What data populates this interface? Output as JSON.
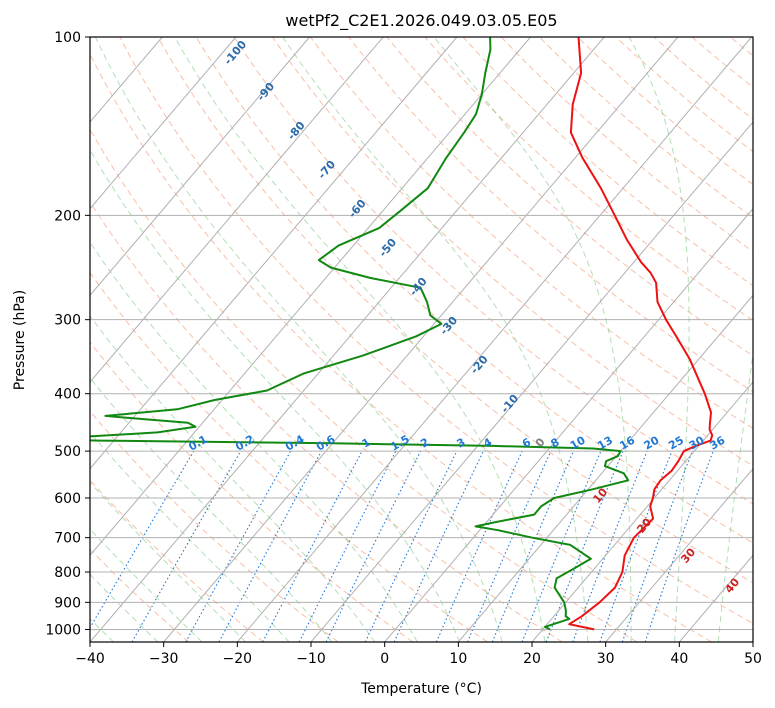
{
  "chart_data": {
    "type": "skew-t log-p",
    "title": "wetPf2_C2E1.2026.049.03.05.E05",
    "xlabel": "Temperature (°C)",
    "ylabel": "Pressure (hPa)",
    "xlim": [
      -40,
      50
    ],
    "ylim_hpa": [
      1050,
      100
    ],
    "y_scale": "log",
    "grid": true,
    "x_ticks": [
      -40,
      -30,
      -20,
      -10,
      0,
      10,
      20,
      30,
      40,
      50
    ],
    "x_tick_labels": [
      "−40",
      "−30",
      "−20",
      "−10",
      "0",
      "10",
      "20",
      "30",
      "40",
      "50"
    ],
    "y_ticks": [
      100,
      200,
      300,
      400,
      500,
      600,
      700,
      800,
      900,
      1000
    ],
    "y_tick_labels": [
      "100",
      "200",
      "300",
      "400",
      "500",
      "600",
      "700",
      "800",
      "900",
      "1000"
    ],
    "colors": {
      "temperature": "#ee1111",
      "dewpoint": "#118811",
      "dry_adiabat": "#f4a582",
      "moist_adiabat": "#74c476",
      "mixing_ratio": "#1f78d4",
      "wet_bulb_label": "#2a6aa8",
      "isotherm_label": "#cc2222",
      "grid": "#b0b0b0"
    },
    "series": [
      {
        "name": "",
        "kind": "temperature",
        "points": [
          [
            1000,
            27.0
          ],
          [
            980,
            23.0
          ],
          [
            950,
            23.8
          ],
          [
            900,
            24.6
          ],
          [
            850,
            25.0
          ],
          [
            800,
            24.2
          ],
          [
            750,
            22.6
          ],
          [
            700,
            21.8
          ],
          [
            650,
            22.2
          ],
          [
            620,
            20.4
          ],
          [
            600,
            19.8
          ],
          [
            580,
            19.0
          ],
          [
            560,
            18.8
          ],
          [
            540,
            19.2
          ],
          [
            520,
            19.0
          ],
          [
            500,
            18.6
          ],
          [
            490,
            19.6
          ],
          [
            480,
            21.0
          ],
          [
            470,
            20.6
          ],
          [
            460,
            19.6
          ],
          [
            450,
            19.0
          ],
          [
            430,
            17.8
          ],
          [
            400,
            14.8
          ],
          [
            350,
            8.8
          ],
          [
            320,
            4.3
          ],
          [
            300,
            1.0
          ],
          [
            280,
            -2.2
          ],
          [
            260,
            -4.6
          ],
          [
            250,
            -6.5
          ],
          [
            240,
            -9.0
          ],
          [
            220,
            -13.5
          ],
          [
            200,
            -18.0
          ],
          [
            180,
            -23.0
          ],
          [
            160,
            -29.0
          ],
          [
            145,
            -33.5
          ],
          [
            130,
            -36.5
          ],
          [
            115,
            -39.0
          ],
          [
            100,
            -43.5
          ]
        ]
      },
      {
        "name": "",
        "kind": "dewpoint",
        "points": [
          [
            1000,
            21.0
          ],
          [
            990,
            20.0
          ],
          [
            960,
            22.4
          ],
          [
            950,
            21.6
          ],
          [
            930,
            21.0
          ],
          [
            900,
            19.8
          ],
          [
            850,
            16.8
          ],
          [
            820,
            16.0
          ],
          [
            790,
            17.2
          ],
          [
            760,
            18.4
          ],
          [
            720,
            14.0
          ],
          [
            700,
            8.0
          ],
          [
            680,
            2.5
          ],
          [
            670,
            -1.0
          ],
          [
            660,
            1.0
          ],
          [
            640,
            5.6
          ],
          [
            620,
            5.6
          ],
          [
            600,
            6.4
          ],
          [
            580,
            10.6
          ],
          [
            560,
            14.4
          ],
          [
            545,
            13.0
          ],
          [
            530,
            9.6
          ],
          [
            520,
            9.2
          ],
          [
            510,
            10.2
          ],
          [
            500,
            10.0
          ],
          [
            495,
            6.0
          ],
          [
            490,
            -8.0
          ],
          [
            485,
            -30.0
          ],
          [
            480,
            -62.0
          ],
          [
            478,
            -70.0
          ],
          [
            475,
            -67.0
          ],
          [
            465,
            -55.0
          ],
          [
            455,
            -50.5
          ],
          [
            448,
            -52.0
          ],
          [
            442,
            -58.0
          ],
          [
            436,
            -64.0
          ],
          [
            425,
            -55.0
          ],
          [
            410,
            -51.0
          ],
          [
            395,
            -45.0
          ],
          [
            370,
            -42.0
          ],
          [
            345,
            -36.0
          ],
          [
            320,
            -31.0
          ],
          [
            305,
            -29.0
          ],
          [
            295,
            -31.5
          ],
          [
            280,
            -33.5
          ],
          [
            265,
            -36.0
          ],
          [
            255,
            -44.0
          ],
          [
            245,
            -50.5
          ],
          [
            238,
            -53.0
          ],
          [
            225,
            -52.0
          ],
          [
            210,
            -48.5
          ],
          [
            195,
            -47.5
          ],
          [
            180,
            -46.5
          ],
          [
            160,
            -47.5
          ],
          [
            145,
            -48.0
          ],
          [
            135,
            -48.5
          ],
          [
            125,
            -50.0
          ],
          [
            115,
            -52.0
          ],
          [
            105,
            -54.0
          ],
          [
            100,
            -55.5
          ]
        ]
      }
    ],
    "mixing_ratio_labels_gkg": [
      "0.1",
      "0.2",
      "0.4",
      "0.6",
      "1",
      "1.5",
      "2",
      "3",
      "4",
      "6",
      "8",
      "10",
      "13",
      "16",
      "20",
      "25",
      "30",
      "36"
    ],
    "wet_bulb_labels": [
      "-100",
      "-90",
      "-80",
      "-70",
      "-60",
      "-50",
      "-40",
      "-30",
      "-20",
      "-10",
      "0"
    ],
    "isotherm_labels": [
      "10",
      "20",
      "30",
      "40"
    ]
  }
}
